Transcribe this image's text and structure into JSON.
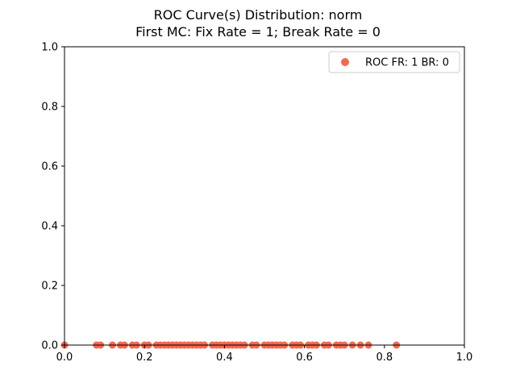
{
  "chart_data": {
    "type": "scatter",
    "title": "ROC Curve(s) Distribution: norm",
    "subtitle": "First MC: Fix Rate = 1; Break Rate = 0",
    "xlabel": "",
    "ylabel": "",
    "xlim": [
      0.0,
      1.0
    ],
    "ylim": [
      0.0,
      1.0
    ],
    "x_ticks": [
      "0.0",
      "0.2",
      "0.4",
      "0.6",
      "0.8",
      "1.0"
    ],
    "y_ticks": [
      "0.0",
      "0.2",
      "0.4",
      "0.6",
      "0.8",
      "1.0"
    ],
    "grid": false,
    "legend_position": "top-right",
    "series": [
      {
        "name": "ROC FR: 1 BR: 0",
        "color": "#f4684c",
        "x": [
          0.0,
          0.08,
          0.09,
          0.12,
          0.14,
          0.15,
          0.17,
          0.18,
          0.2,
          0.21,
          0.23,
          0.24,
          0.25,
          0.26,
          0.27,
          0.28,
          0.29,
          0.3,
          0.31,
          0.32,
          0.33,
          0.34,
          0.35,
          0.37,
          0.38,
          0.39,
          0.4,
          0.41,
          0.42,
          0.43,
          0.44,
          0.45,
          0.47,
          0.48,
          0.5,
          0.51,
          0.52,
          0.53,
          0.54,
          0.55,
          0.57,
          0.58,
          0.59,
          0.61,
          0.62,
          0.63,
          0.65,
          0.66,
          0.68,
          0.69,
          0.7,
          0.72,
          0.74,
          0.76,
          0.83
        ],
        "y": [
          0.0,
          0.0,
          0.0,
          0.0,
          0.0,
          0.0,
          0.0,
          0.0,
          0.0,
          0.0,
          0.0,
          0.0,
          0.0,
          0.0,
          0.0,
          0.0,
          0.0,
          0.0,
          0.0,
          0.0,
          0.0,
          0.0,
          0.0,
          0.0,
          0.0,
          0.0,
          0.0,
          0.0,
          0.0,
          0.0,
          0.0,
          0.0,
          0.0,
          0.0,
          0.0,
          0.0,
          0.0,
          0.0,
          0.0,
          0.0,
          0.0,
          0.0,
          0.0,
          0.0,
          0.0,
          0.0,
          0.0,
          0.0,
          0.0,
          0.0,
          0.0,
          0.0,
          0.0,
          0.0,
          0.0
        ]
      }
    ]
  }
}
